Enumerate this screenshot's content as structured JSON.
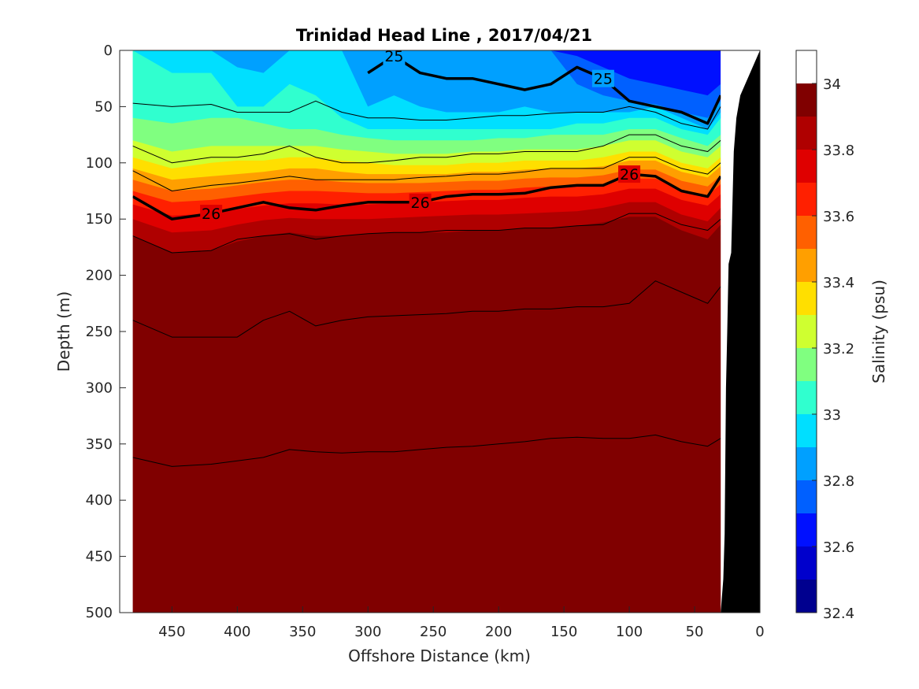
{
  "chart_data": {
    "type": "heatmap",
    "title": "Trinidad Head Line , 2017/04/21",
    "xlabel": "Offshore Distance (km)",
    "ylabel": "Depth (m)",
    "colorbar_label": "Salinity (psu)",
    "xlim": [
      490,
      0
    ],
    "ylim": [
      500,
      0
    ],
    "x_reversed": true,
    "y_reversed": true,
    "xticks": [
      "450",
      "400",
      "350",
      "300",
      "250",
      "200",
      "150",
      "100",
      "50",
      "0"
    ],
    "yticks": [
      "0",
      "50",
      "100",
      "150",
      "200",
      "250",
      "300",
      "350",
      "400",
      "450",
      "500"
    ],
    "colorbar_ticks": [
      "32.4",
      "32.6",
      "32.8",
      "33",
      "33.2",
      "33.4",
      "33.6",
      "33.8",
      "34"
    ],
    "colorbar_levels": [
      32.4,
      32.5,
      32.6,
      32.7,
      32.8,
      32.9,
      33.0,
      33.1,
      33.2,
      33.3,
      33.4,
      33.5,
      33.6,
      33.7,
      33.8,
      33.9,
      34.0,
      34.1
    ],
    "colorbar_colors": [
      "#00008f",
      "#0000cc",
      "#0010ff",
      "#0060ff",
      "#00a0ff",
      "#00dfff",
      "#30ffcf",
      "#80ff80",
      "#cfff30",
      "#ffdf00",
      "#ff9f00",
      "#ff6000",
      "#ff2000",
      "#df0000",
      "#af0000",
      "#800000"
    ],
    "distance_km": [
      480,
      450,
      420,
      400,
      380,
      360,
      340,
      320,
      300,
      280,
      260,
      240,
      220,
      200,
      180,
      160,
      140,
      120,
      100,
      80,
      60,
      40,
      30
    ],
    "band_boundaries": [
      {
        "level": 32.7,
        "depth_m": [
          null,
          null,
          null,
          null,
          null,
          null,
          null,
          null,
          null,
          null,
          null,
          null,
          null,
          null,
          null,
          null,
          5,
          15,
          25,
          30,
          35,
          40,
          30
        ]
      },
      {
        "level": 32.8,
        "depth_m": [
          null,
          null,
          null,
          null,
          null,
          null,
          null,
          null,
          null,
          null,
          null,
          null,
          null,
          null,
          null,
          null,
          30,
          40,
          45,
          48,
          55,
          60,
          45
        ]
      },
      {
        "level": 32.9,
        "depth_m": [
          null,
          null,
          null,
          15,
          20,
          null,
          null,
          null,
          50,
          40,
          50,
          55,
          55,
          55,
          50,
          55,
          55,
          55,
          55,
          50,
          60,
          70,
          55
        ]
      },
      {
        "level": 33.0,
        "depth_m": [
          null,
          20,
          20,
          50,
          50,
          30,
          40,
          60,
          70,
          70,
          70,
          70,
          70,
          70,
          70,
          70,
          65,
          65,
          60,
          60,
          70,
          75,
          60
        ]
      },
      {
        "level": 33.1,
        "depth_m": [
          60,
          65,
          60,
          60,
          65,
          70,
          70,
          75,
          78,
          80,
          80,
          80,
          80,
          78,
          78,
          75,
          75,
          75,
          70,
          70,
          78,
          85,
          75
        ]
      },
      {
        "level": 33.2,
        "depth_m": [
          80,
          90,
          85,
          85,
          85,
          85,
          85,
          88,
          90,
          92,
          92,
          92,
          90,
          90,
          88,
          88,
          88,
          85,
          80,
          80,
          90,
          95,
          85
        ]
      },
      {
        "level": 33.3,
        "depth_m": [
          95,
          105,
          100,
          98,
          98,
          95,
          95,
          98,
          100,
          102,
          102,
          102,
          100,
          100,
          98,
          98,
          98,
          95,
          90,
          90,
          100,
          105,
          95
        ]
      },
      {
        "level": 33.4,
        "depth_m": [
          105,
          115,
          112,
          110,
          108,
          105,
          105,
          108,
          110,
          110,
          110,
          110,
          108,
          108,
          106,
          105,
          105,
          103,
          98,
          98,
          108,
          113,
          103
        ]
      },
      {
        "level": 33.5,
        "depth_m": [
          115,
          125,
          123,
          120,
          117,
          115,
          115,
          117,
          118,
          118,
          118,
          117,
          116,
          116,
          114,
          113,
          113,
          111,
          106,
          106,
          116,
          121,
          111
        ]
      },
      {
        "level": 33.6,
        "depth_m": [
          125,
          135,
          133,
          130,
          127,
          125,
          125,
          126,
          127,
          127,
          126,
          125,
          124,
          124,
          122,
          121,
          121,
          119,
          114,
          114,
          124,
          129,
          119
        ]
      },
      {
        "level": 33.7,
        "depth_m": [
          137,
          147,
          145,
          141,
          138,
          136,
          136,
          137,
          137,
          136,
          135,
          134,
          133,
          133,
          131,
          130,
          130,
          128,
          123,
          123,
          133,
          138,
          128
        ]
      },
      {
        "level": 33.8,
        "depth_m": [
          150,
          162,
          160,
          155,
          151,
          149,
          150,
          150,
          150,
          149,
          148,
          147,
          146,
          146,
          145,
          144,
          143,
          140,
          135,
          135,
          146,
          152,
          140
        ]
      },
      {
        "level": 33.9,
        "depth_m": [
          165,
          180,
          178,
          170,
          165,
          162,
          165,
          165,
          163,
          162,
          162,
          162,
          160,
          160,
          158,
          158,
          156,
          153,
          148,
          148,
          160,
          168,
          155
        ]
      },
      {
        "level": 34.0,
        "depth_m": [
          175,
          185,
          185,
          178,
          175,
          172,
          178,
          180,
          178,
          175,
          175,
          175,
          172,
          172,
          170,
          170,
          168,
          165,
          160,
          162,
          172,
          180,
          170
        ]
      }
    ],
    "deep_high_salinity_region": {
      "level": 34.0,
      "boundary_points": [
        [
          240,
          500
        ],
        [
          250,
          420
        ],
        [
          250,
          360
        ],
        [
          230,
          320
        ],
        [
          220,
          300
        ],
        [
          215,
          270
        ],
        [
          205,
          245
        ],
        [
          175,
          235
        ],
        [
          165,
          230
        ],
        [
          150,
          225
        ],
        [
          140,
          230
        ],
        [
          120,
          240
        ],
        [
          100,
          230
        ],
        [
          90,
          220
        ],
        [
          80,
          215
        ],
        [
          60,
          215
        ],
        [
          50,
          210
        ],
        [
          40,
          200
        ],
        [
          30,
          190
        ]
      ]
    },
    "isopycnals": [
      {
        "label": "25",
        "emphasis": "bold",
        "depth_m": [
          null,
          null,
          null,
          null,
          null,
          null,
          null,
          null,
          20,
          5,
          20,
          25,
          25,
          30,
          35,
          30,
          15,
          25,
          45,
          50,
          55,
          65,
          40
        ]
      },
      {
        "label": "26",
        "emphasis": "bold",
        "depth_m": [
          130,
          150,
          145,
          140,
          135,
          140,
          142,
          138,
          135,
          135,
          135,
          130,
          128,
          128,
          127,
          122,
          120,
          120,
          110,
          112,
          125,
          130,
          112
        ]
      },
      {
        "label": "",
        "emphasis": "thin",
        "depth_m": [
          47,
          50,
          48,
          55,
          55,
          55,
          45,
          55,
          60,
          60,
          62,
          62,
          60,
          58,
          58,
          56,
          55,
          55,
          50,
          55,
          65,
          70,
          50
        ]
      },
      {
        "label": "",
        "emphasis": "thin",
        "depth_m": [
          85,
          100,
          95,
          95,
          92,
          85,
          95,
          100,
          100,
          98,
          95,
          95,
          92,
          92,
          90,
          90,
          90,
          85,
          75,
          75,
          85,
          90,
          80
        ]
      },
      {
        "label": "",
        "emphasis": "thin",
        "depth_m": [
          107,
          125,
          120,
          118,
          115,
          112,
          115,
          115,
          115,
          115,
          113,
          112,
          110,
          110,
          108,
          105,
          105,
          105,
          95,
          95,
          105,
          110,
          100
        ]
      },
      {
        "label": "",
        "emphasis": "thin",
        "depth_m": [
          165,
          180,
          178,
          168,
          165,
          163,
          168,
          165,
          163,
          162,
          162,
          160,
          160,
          160,
          158,
          158,
          156,
          155,
          145,
          145,
          155,
          160,
          150
        ]
      },
      {
        "label": "",
        "emphasis": "thin",
        "depth_m": [
          240,
          255,
          255,
          255,
          240,
          232,
          245,
          240,
          237,
          236,
          235,
          234,
          232,
          232,
          230,
          230,
          228,
          228,
          225,
          205,
          215,
          225,
          210
        ]
      },
      {
        "label": "",
        "emphasis": "thin",
        "depth_m": [
          362,
          370,
          368,
          365,
          362,
          355,
          357,
          358,
          357,
          357,
          355,
          353,
          352,
          350,
          348,
          345,
          344,
          345,
          345,
          342,
          348,
          352,
          345
        ]
      }
    ],
    "bathymetry_depth_m": [
      [
        30,
        500
      ],
      [
        28,
        470
      ],
      [
        27,
        430
      ],
      [
        26,
        300
      ],
      [
        25,
        250
      ],
      [
        24,
        190
      ],
      [
        22,
        180
      ],
      [
        20,
        90
      ],
      [
        18,
        60
      ],
      [
        15,
        40
      ],
      [
        0,
        0
      ]
    ],
    "grid": false,
    "colorbar_position": "right"
  }
}
